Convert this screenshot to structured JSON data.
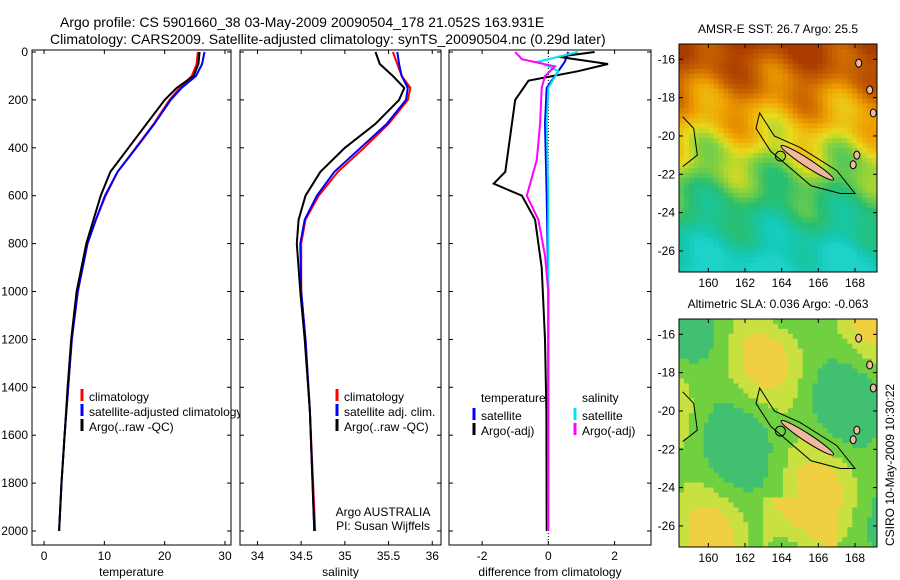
{
  "title_line1": "Argo profile: CS 5901660_38 03-May-2009 20090504_178 21.052S 163.931E",
  "title_line2": "Climatology: CARS2009. Satellite-adjusted climatology: synTS_20090504.nc (0.29d later)",
  "side_label": "CSIRO 10-May-2009 10:30:22",
  "colors": {
    "clim": "#ff0000",
    "sat": "#0000ff",
    "argo": "#000000",
    "sal_sat": "#00e5ee",
    "sal_argo": "#ff00ff"
  },
  "chart_data": [
    {
      "type": "line",
      "name": "temperature",
      "xlabel": "temperature",
      "ylabel": "",
      "xlim": [
        -2,
        31
      ],
      "ylim": [
        2000,
        0
      ],
      "xticks": [
        0,
        10,
        20,
        30
      ],
      "yticks": [
        0,
        200,
        400,
        600,
        800,
        1000,
        1200,
        1400,
        1600,
        1800,
        2000
      ],
      "depth": [
        0,
        50,
        100,
        150,
        200,
        300,
        400,
        500,
        600,
        700,
        800,
        1000,
        1200,
        1400,
        1600,
        1800,
        2000
      ],
      "series": [
        {
          "name": "climatology",
          "color": "clim",
          "values": [
            25.5,
            25.3,
            24.5,
            22.5,
            20.8,
            18.2,
            15.2,
            12.2,
            10.2,
            8.6,
            7.2,
            5.6,
            4.6,
            4.0,
            3.4,
            2.9,
            2.5
          ]
        },
        {
          "name": "satellite-adjusted climatology",
          "color": "sat",
          "values": [
            26.6,
            26.2,
            25.2,
            22.8,
            21.0,
            18.3,
            15.3,
            12.2,
            10.1,
            8.6,
            7.2,
            5.6,
            4.6,
            4.0,
            3.4,
            2.9,
            2.5
          ]
        },
        {
          "name": "Argo(..raw -QC)",
          "color": "argo",
          "values": [
            25.8,
            25.6,
            24.8,
            22.0,
            20.0,
            17.0,
            14.0,
            11.0,
            9.4,
            8.2,
            7.0,
            5.4,
            4.5,
            3.9,
            3.4,
            2.9,
            2.5
          ]
        }
      ],
      "legend": [
        "climatology",
        "satellite-adjusted climatology",
        "Argo(..raw -QC)"
      ],
      "legend_position": "lower-right"
    },
    {
      "type": "line",
      "name": "salinity",
      "xlabel": "salinity",
      "xlim": [
        33.8,
        36.1
      ],
      "ylim": [
        2000,
        0
      ],
      "xticks": [
        34,
        34.5,
        35,
        35.5,
        36
      ],
      "depth": [
        0,
        50,
        100,
        150,
        200,
        300,
        400,
        500,
        600,
        700,
        800,
        1000,
        1200,
        1500,
        2000
      ],
      "series": [
        {
          "name": "climatology",
          "color": "clim",
          "values": [
            35.55,
            35.6,
            35.65,
            35.75,
            35.72,
            35.5,
            35.22,
            34.92,
            34.7,
            34.55,
            34.5,
            34.5,
            34.55,
            34.6,
            34.66
          ]
        },
        {
          "name": "satellite adj. clim.",
          "color": "sat",
          "values": [
            35.6,
            35.62,
            35.65,
            35.72,
            35.7,
            35.48,
            35.18,
            34.88,
            34.68,
            34.54,
            34.49,
            34.5,
            34.55,
            34.6,
            34.65
          ]
        },
        {
          "name": "Argo(..raw -QC)",
          "color": "argo",
          "values": [
            35.35,
            35.4,
            35.55,
            35.68,
            35.62,
            35.35,
            35.0,
            34.72,
            34.55,
            34.47,
            34.45,
            34.49,
            34.54,
            34.6,
            34.65
          ]
        }
      ],
      "legend": [
        "climatology",
        "satellite adj. clim.",
        "Argo(..raw -QC)"
      ],
      "legend_position": "lower-right",
      "annotation": [
        "Argo AUSTRALIA",
        "PI: Susan Wijffels"
      ]
    },
    {
      "type": "line",
      "name": "difference",
      "xlabel": "difference from climatology",
      "xlim": [
        -3,
        3.1
      ],
      "ylim": [
        2000,
        0
      ],
      "xticks": [
        -2,
        0,
        2
      ],
      "series": [
        {
          "name": "temperature satellite",
          "color": "sat",
          "depth": [
            0,
            40,
            80,
            150,
            300,
            600,
            1000,
            2000
          ],
          "values": [
            0.6,
            0.5,
            0.3,
            -0.05,
            -0.1,
            -0.05,
            0,
            0
          ]
        },
        {
          "name": "temperature Argo(-adj)",
          "color": "argo",
          "depth": [
            0,
            20,
            50,
            80,
            120,
            200,
            300,
            400,
            500,
            550,
            600,
            700,
            900,
            1200,
            1500,
            2000
          ],
          "values": [
            1.4,
            0.3,
            1.8,
            0.9,
            -0.6,
            -1.0,
            -1.1,
            -1.2,
            -1.3,
            -1.65,
            -0.8,
            -0.4,
            -0.2,
            -0.1,
            -0.06,
            -0.05
          ]
        },
        {
          "name": "salinity satellite",
          "color": "sal_sat",
          "depth": [
            0,
            40,
            80,
            150,
            300,
            600,
            1000,
            2000
          ],
          "values": [
            0.9,
            -0.3,
            0.3,
            0,
            -0.05,
            0,
            0,
            0
          ]
        },
        {
          "name": "salinity Argo(-adj)",
          "color": "sal_argo",
          "depth": [
            0,
            30,
            60,
            100,
            150,
            300,
            450,
            600,
            700,
            850,
            1000,
            2000
          ],
          "values": [
            -1.0,
            -0.8,
            0.2,
            -0.1,
            -0.2,
            -0.25,
            -0.35,
            -0.65,
            -0.3,
            -0.1,
            0,
            -0.01
          ]
        }
      ],
      "legend_headers": [
        "temperature",
        "salinity"
      ],
      "legend": [
        "satellite",
        "Argo(-adj)",
        "satellite",
        "Argo(-adj)"
      ],
      "legend_position": "lower-middle"
    }
  ],
  "maps": [
    {
      "title": "AMSR-E SST: 26.7 Argo: 25.5",
      "kind": "sst"
    },
    {
      "title": "Altimetric SLA: 0.036 Argo: -0.063",
      "kind": "sla"
    }
  ],
  "map_axes": {
    "xticks": [
      160,
      162,
      164,
      166,
      168
    ],
    "yticks": [
      -16,
      -18,
      -20,
      -22,
      -24,
      -26
    ],
    "lon_range": [
      158.4,
      169.2
    ],
    "lat_range": [
      -15.2,
      -27.1
    ]
  },
  "argo_position": {
    "lon": 163.931,
    "lat": -21.052
  }
}
